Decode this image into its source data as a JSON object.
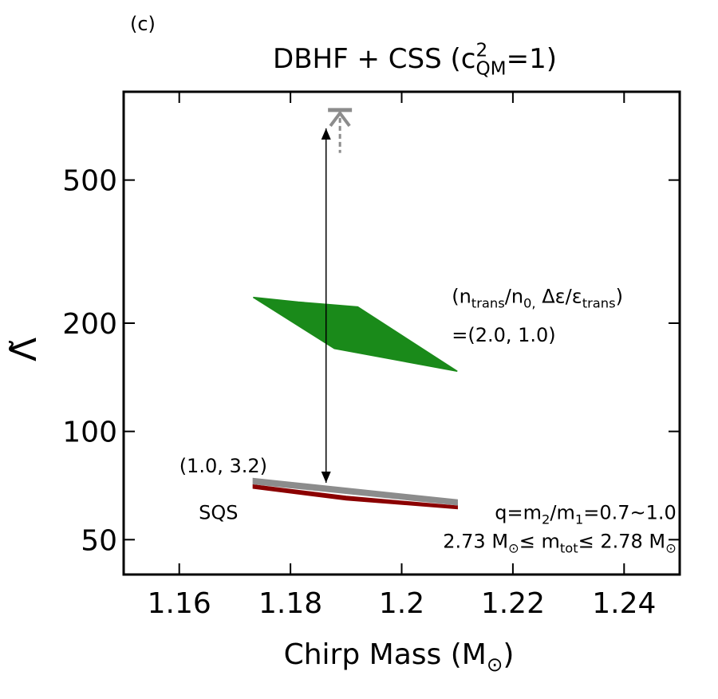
{
  "chart_data": {
    "type": "area",
    "panel_label": "(c)",
    "title": [
      {
        "text": "DBHF + CSS (c"
      },
      {
        "text": "2",
        "shift": "sup"
      },
      {
        "text": "QM",
        "shift": "sub",
        "stack": true
      },
      {
        "text": "=1)"
      }
    ],
    "xlabel": [
      {
        "text": "Chirp Mass (M"
      },
      {
        "text": "⊙",
        "shift": "sub"
      },
      {
        "text": ")"
      }
    ],
    "ylabel": "Λ̃",
    "xlim": [
      1.15,
      1.25
    ],
    "xticks": [
      1.16,
      1.18,
      1.2,
      1.22,
      1.24
    ],
    "ylim": [
      40,
      880
    ],
    "yticks": [
      50,
      100,
      200,
      500
    ],
    "log_y": true,
    "series": [
      {
        "color": "#1a8a1a",
        "x": [
          1.1733,
          1.1814,
          1.1921,
          1.21,
          1.1879
        ],
        "values": [
          236,
          229,
          222,
          147,
          170
        ]
      },
      {
        "color": "#8b0000",
        "x": [
          1.1733,
          1.19,
          1.21,
          1.21,
          1.19,
          1.1733
        ],
        "values": [
          71,
          66,
          62,
          61,
          64.5,
          69.5
        ]
      },
      {
        "color": "#8c8c8c",
        "x": [
          1.1733,
          1.21,
          1.21,
          1.1733
        ],
        "values": [
          74,
          64.5,
          62.5,
          71.5
        ]
      }
    ],
    "arrow": {
      "x": 1.1864,
      "values": [
        72,
        696
      ],
      "color": "#000000"
    },
    "upper_limit": {
      "x": 1.1889,
      "value": 783,
      "dashed_to": 595,
      "color": "#8c8c8c"
    },
    "annotations": [
      {
        "x": 1.209,
        "y": 228,
        "anchor": "start",
        "parts": [
          {
            "text": "(n"
          },
          {
            "text": "trans",
            "shift": "sub"
          },
          {
            "text": "/n"
          },
          {
            "text": "0,",
            "shift": "sub"
          },
          {
            "text": " Δε/ε"
          },
          {
            "text": "trans",
            "shift": "sub"
          },
          {
            "text": ")"
          }
        ]
      },
      {
        "x": 1.209,
        "y": 178,
        "anchor": "start",
        "parts": [
          {
            "text": "=(2.0, 1.0)"
          }
        ]
      },
      {
        "x": 1.16,
        "y": 77,
        "anchor": "start",
        "parts": [
          {
            "text": "(1.0, 3.2)"
          }
        ]
      },
      {
        "x": 1.1635,
        "y": 57,
        "anchor": "start",
        "parts": [
          {
            "text": "SQS"
          }
        ]
      },
      {
        "x": 1.2494,
        "y": 57,
        "anchor": "end",
        "parts": [
          {
            "text": "q=m"
          },
          {
            "text": "2",
            "shift": "sub"
          },
          {
            "text": "/m"
          },
          {
            "text": "1",
            "shift": "sub"
          },
          {
            "text": "=0.7~1.0"
          }
        ]
      },
      {
        "x": 1.2494,
        "y": 47.5,
        "anchor": "end",
        "parts": [
          {
            "text": "2.73 M"
          },
          {
            "text": "⊙",
            "shift": "sub"
          },
          {
            "text": "≤ m"
          },
          {
            "text": "tot",
            "shift": "sub"
          },
          {
            "text": "≤ 2.78 M"
          },
          {
            "text": "⊙",
            "shift": "sub"
          }
        ]
      }
    ]
  }
}
